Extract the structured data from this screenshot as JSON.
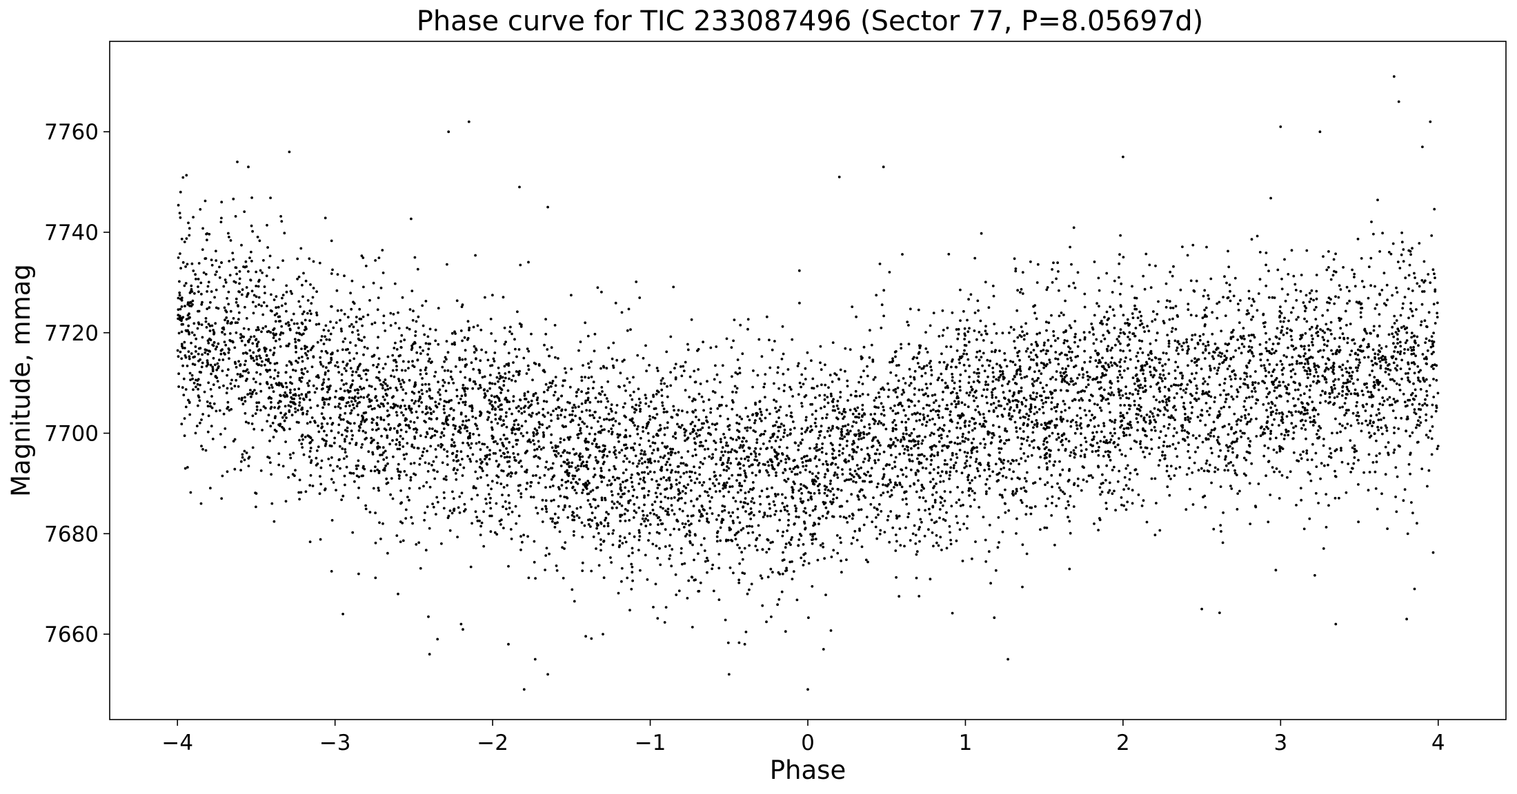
{
  "chart_data": {
    "type": "scatter",
    "title": "Phase curve for TIC 233087496 (Sector 77, P=8.05697d)",
    "xlabel": "Phase",
    "ylabel": "Magnitude, mmag",
    "xlim": [
      -4.43,
      4.43
    ],
    "ylim": [
      7643,
      7778
    ],
    "x_ticks": [
      -4,
      -3,
      -2,
      -1,
      0,
      1,
      2,
      3,
      4
    ],
    "x_tick_labels": [
      "−4",
      "−3",
      "−2",
      "−1",
      "0",
      "1",
      "2",
      "3",
      "4"
    ],
    "y_ticks": [
      7660,
      7680,
      7700,
      7720,
      7740,
      7760
    ],
    "y_tick_labels": [
      "7660",
      "7680",
      "7700",
      "7720",
      "7740",
      "7760"
    ],
    "grid": false,
    "legend": "none",
    "marker_color": "#000000",
    "x_range_of_points": [
      -4.0,
      4.0
    ],
    "trend": {
      "x": [
        -4.0,
        -3.5,
        -3.0,
        -2.5,
        -2.0,
        -1.5,
        -1.0,
        -0.5,
        0.0,
        0.5,
        1.0,
        1.5,
        2.0,
        2.5,
        3.0,
        3.5,
        4.0
      ],
      "y": [
        7720,
        7716,
        7708,
        7704,
        7701,
        7697,
        7694,
        7692,
        7693,
        7698,
        7702,
        7705,
        7707,
        7709,
        7710,
        7711,
        7713
      ]
    },
    "series": [
      {
        "points": [
          [
            -3.98,
            7748
          ],
          [
            -3.9,
            7743
          ],
          [
            -3.72,
            7746
          ],
          [
            -3.62,
            7754
          ],
          [
            -3.55,
            7753
          ],
          [
            -3.29,
            7756
          ],
          [
            -2.28,
            7760
          ],
          [
            -2.15,
            7762
          ],
          [
            -1.83,
            7749
          ],
          [
            -1.65,
            7745
          ],
          [
            0.2,
            7751
          ],
          [
            0.48,
            7753
          ],
          [
            2.0,
            7755
          ],
          [
            3.0,
            7761
          ],
          [
            3.25,
            7760
          ],
          [
            3.72,
            7771
          ],
          [
            3.75,
            7766
          ],
          [
            3.95,
            7762
          ],
          [
            3.9,
            7757
          ],
          [
            -3.95,
            7693
          ],
          [
            -3.85,
            7686
          ],
          [
            -3.72,
            7687
          ],
          [
            -3.5,
            7688
          ],
          [
            -3.4,
            7686
          ],
          [
            -2.95,
            7664
          ],
          [
            -2.85,
            7672
          ],
          [
            -2.6,
            7668
          ],
          [
            -2.4,
            7656
          ],
          [
            -2.35,
            7659
          ],
          [
            -2.2,
            7662
          ],
          [
            -1.9,
            7658
          ],
          [
            -1.8,
            7649
          ],
          [
            -1.73,
            7655
          ],
          [
            -1.65,
            7652
          ],
          [
            -1.3,
            7660
          ],
          [
            -0.5,
            7652
          ],
          [
            -0.4,
            7658
          ],
          [
            0.0,
            7649
          ],
          [
            0.1,
            7657
          ],
          [
            1.27,
            7655
          ],
          [
            2.5,
            7665
          ],
          [
            3.35,
            7662
          ],
          [
            3.8,
            7663
          ],
          [
            3.85,
            7669
          ]
        ]
      }
    ]
  }
}
